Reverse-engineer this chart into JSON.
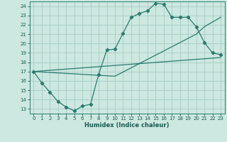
{
  "xlabel": "Humidex (Indice chaleur)",
  "bg_color": "#cce8e0",
  "grid_color": "#aacfc8",
  "line_color": "#2a7a6e",
  "xlim": [
    -0.5,
    23.5
  ],
  "ylim": [
    12.5,
    24.5
  ],
  "xticks": [
    0,
    1,
    2,
    3,
    4,
    5,
    6,
    7,
    8,
    9,
    10,
    11,
    12,
    13,
    14,
    15,
    16,
    17,
    18,
    19,
    20,
    21,
    22,
    23
  ],
  "yticks": [
    13,
    14,
    15,
    16,
    17,
    18,
    19,
    20,
    21,
    22,
    23,
    24
  ],
  "curve_with_markers": [
    [
      0,
      17.0
    ],
    [
      1,
      15.8
    ],
    [
      2,
      14.8
    ],
    [
      3,
      13.8
    ],
    [
      4,
      13.2
    ],
    [
      5,
      12.8
    ],
    [
      6,
      13.3
    ],
    [
      7,
      13.5
    ],
    [
      8,
      16.7
    ],
    [
      9,
      19.3
    ],
    [
      10,
      19.4
    ],
    [
      11,
      21.1
    ],
    [
      12,
      22.8
    ],
    [
      13,
      23.2
    ],
    [
      14,
      23.5
    ],
    [
      15,
      24.3
    ],
    [
      16,
      24.2
    ],
    [
      17,
      22.8
    ],
    [
      18,
      22.8
    ],
    [
      19,
      22.8
    ],
    [
      20,
      21.8
    ],
    [
      21,
      20.1
    ],
    [
      22,
      19.0
    ],
    [
      23,
      18.8
    ]
  ],
  "lower_line": [
    [
      0,
      17.0
    ],
    [
      23,
      18.5
    ]
  ],
  "upper_line": [
    [
      0,
      17.0
    ],
    [
      10,
      16.5
    ],
    [
      20,
      21.0
    ],
    [
      21,
      21.8
    ],
    [
      23,
      22.8
    ]
  ]
}
